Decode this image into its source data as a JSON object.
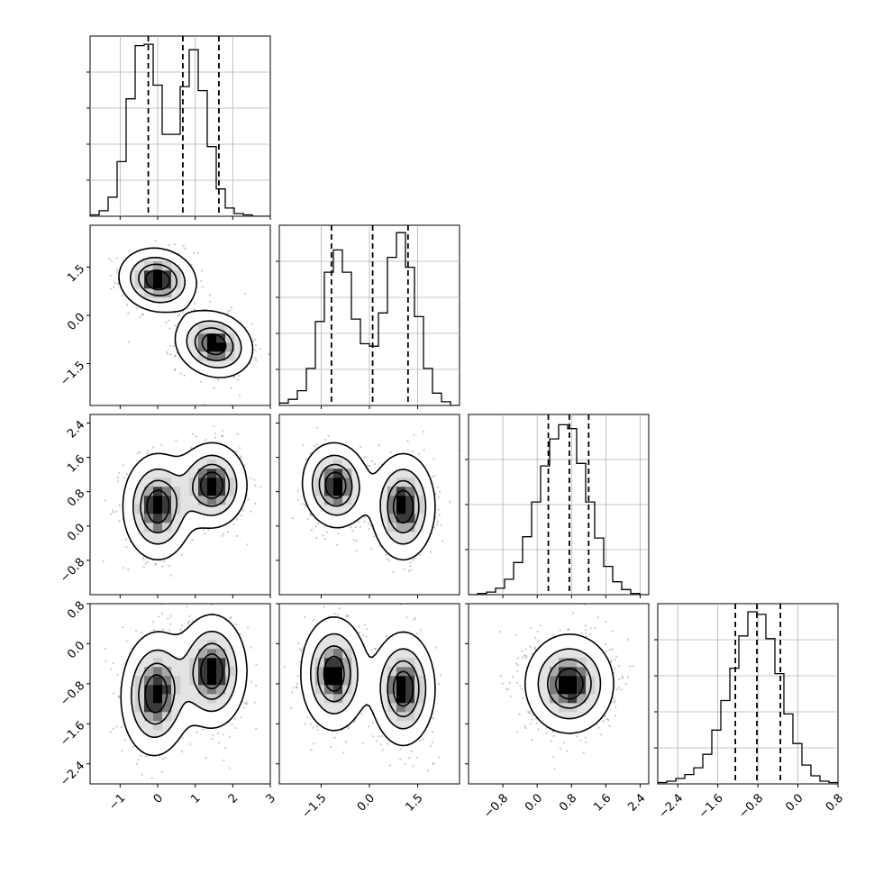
{
  "chart_data": {
    "type": "corner",
    "n_params": 4,
    "style": {
      "hist_color": "#000000",
      "grid_color": "#b0b0b0",
      "quantile_line": "dashed",
      "contour_fill_colors": [
        "#ffffff",
        "#e3e3e3",
        "#bdbdbd",
        "#8c8c8c"
      ],
      "density_cell_colors": [
        "#cfcfcf",
        "#a9a9a9",
        "#7a7a7a",
        "#3a3a3a",
        "#000000"
      ]
    },
    "ranges": [
      [
        -1.8,
        3.0
      ],
      [
        -2.8,
        2.8
      ],
      [
        -1.6,
        2.6
      ],
      [
        -2.8,
        0.8
      ]
    ],
    "x_ticks": [
      {
        "values": [
          -1,
          0,
          1,
          2,
          3
        ],
        "labels": [
          "−1",
          "0",
          "1",
          "2",
          "3"
        ]
      },
      {
        "values": [
          -1.5,
          0.0,
          1.5
        ],
        "labels": [
          "−1.5",
          "0.0",
          "1.5"
        ]
      },
      {
        "values": [
          -0.8,
          0.0,
          0.8,
          1.6,
          2.4
        ],
        "labels": [
          "−0.8",
          "0.0",
          "0.8",
          "1.6",
          "2.4"
        ]
      },
      {
        "values": [
          -2.4,
          -1.6,
          -0.8,
          0.0,
          0.8
        ],
        "labels": [
          "−2.4",
          "−1.6",
          "−0.8",
          "0.0",
          "0.8"
        ]
      }
    ],
    "y_ticks": [
      null,
      {
        "values": [
          -1.5,
          0.0,
          1.5
        ],
        "labels": [
          "−1.5",
          "0.0",
          "1.5"
        ]
      },
      {
        "values": [
          -0.8,
          0.0,
          0.8,
          1.6,
          2.4
        ],
        "labels": [
          "−0.8",
          "0.0",
          "0.8",
          "1.6",
          "2.4"
        ]
      },
      {
        "values": [
          -2.4,
          -1.6,
          -0.8,
          0.0,
          0.8
        ],
        "labels": [
          "−2.4",
          "−1.6",
          "−0.8",
          "0.0",
          "0.8"
        ]
      }
    ],
    "histograms": [
      {
        "edges": [
          -1.8,
          -1.56,
          -1.32,
          -1.08,
          -0.84,
          -0.6,
          -0.36,
          -0.12,
          0.12,
          0.36,
          0.6,
          0.84,
          1.08,
          1.32,
          1.56,
          1.8,
          2.04,
          2.28,
          2.52,
          2.76,
          3.0
        ],
        "counts": [
          1,
          4,
          14,
          40,
          86,
          125,
          126,
          96,
          60,
          60,
          95,
          122,
          92,
          51,
          20,
          6,
          2,
          1,
          0,
          0
        ],
        "ymax": 132,
        "quantiles": [
          -0.25,
          0.67,
          1.63
        ]
      },
      {
        "edges": [
          -2.8,
          -2.52,
          -2.24,
          -1.96,
          -1.68,
          -1.4,
          -1.12,
          -0.84,
          -0.56,
          -0.28,
          0.0,
          0.28,
          0.56,
          0.84,
          1.12,
          1.4,
          1.68,
          1.96,
          2.24,
          2.52,
          2.8
        ],
        "counts": [
          2,
          5,
          12,
          30,
          68,
          108,
          126,
          108,
          70,
          50,
          48,
          75,
          120,
          140,
          112,
          72,
          30,
          10,
          3,
          0
        ],
        "ymax": 146,
        "quantiles": [
          -1.18,
          0.1,
          1.2
        ]
      },
      {
        "edges": [
          -1.6,
          -1.39,
          -1.18,
          -0.97,
          -0.76,
          -0.55,
          -0.34,
          -0.13,
          0.08,
          0.29,
          0.5,
          0.71,
          0.92,
          1.13,
          1.34,
          1.55,
          1.76,
          1.97,
          2.18,
          2.39,
          2.6
        ],
        "counts": [
          0,
          1,
          2,
          5,
          12,
          25,
          45,
          72,
          100,
          121,
          132,
          129,
          102,
          72,
          44,
          22,
          10,
          4,
          1,
          0
        ],
        "ymax": 140,
        "quantiles": [
          0.26,
          0.75,
          1.2
        ]
      },
      {
        "edges": [
          -2.8,
          -2.62,
          -2.44,
          -2.26,
          -2.08,
          -1.9,
          -1.72,
          -1.54,
          -1.36,
          -1.18,
          -1.0,
          -0.82,
          -0.64,
          -0.46,
          -0.28,
          -0.1,
          0.08,
          0.26,
          0.44,
          0.62,
          0.8
        ],
        "counts": [
          1,
          2,
          4,
          7,
          12,
          22,
          40,
          62,
          86,
          110,
          128,
          126,
          108,
          82,
          52,
          30,
          14,
          6,
          2,
          1
        ],
        "ymax": 134,
        "quantiles": [
          -1.25,
          -0.82,
          -0.35
        ]
      }
    ],
    "pairs": [
      {
        "row": 1,
        "col": 0,
        "components": [
          {
            "mx": 0.0,
            "my": 1.1,
            "sx": 0.5,
            "sy": 0.48,
            "rho": -0.1,
            "w": 0.5
          },
          {
            "mx": 1.5,
            "my": -0.9,
            "sx": 0.5,
            "sy": 0.5,
            "rho": -0.15,
            "w": 0.5
          }
        ]
      },
      {
        "row": 2,
        "col": 0,
        "components": [
          {
            "mx": 0.0,
            "my": 0.45,
            "sx": 0.45,
            "sy": 0.6,
            "rho": 0.0,
            "w": 0.5
          },
          {
            "mx": 1.45,
            "my": 0.95,
            "sx": 0.45,
            "sy": 0.48,
            "rho": 0.0,
            "w": 0.5
          }
        ]
      },
      {
        "row": 2,
        "col": 1,
        "components": [
          {
            "mx": -1.05,
            "my": 0.95,
            "sx": 0.5,
            "sy": 0.48,
            "rho": -0.05,
            "w": 0.5
          },
          {
            "mx": 1.05,
            "my": 0.45,
            "sx": 0.48,
            "sy": 0.6,
            "rho": 0.0,
            "w": 0.5
          }
        ]
      },
      {
        "row": 3,
        "col": 0,
        "components": [
          {
            "mx": -0.05,
            "my": -1.0,
            "sx": 0.45,
            "sy": 0.6,
            "rho": 0.05,
            "w": 0.5
          },
          {
            "mx": 1.45,
            "my": -0.55,
            "sx": 0.45,
            "sy": 0.55,
            "rho": 0.0,
            "w": 0.5
          }
        ]
      },
      {
        "row": 3,
        "col": 1,
        "components": [
          {
            "mx": -1.1,
            "my": -0.6,
            "sx": 0.5,
            "sy": 0.55,
            "rho": 0.0,
            "w": 0.5
          },
          {
            "mx": 1.05,
            "my": -0.9,
            "sx": 0.48,
            "sy": 0.55,
            "rho": 0.0,
            "w": 0.5
          }
        ]
      },
      {
        "row": 3,
        "col": 2,
        "components": [
          {
            "mx": 0.75,
            "my": -0.8,
            "sx": 0.5,
            "sy": 0.48,
            "rho": 0.0,
            "w": 1.0
          }
        ]
      }
    ]
  }
}
